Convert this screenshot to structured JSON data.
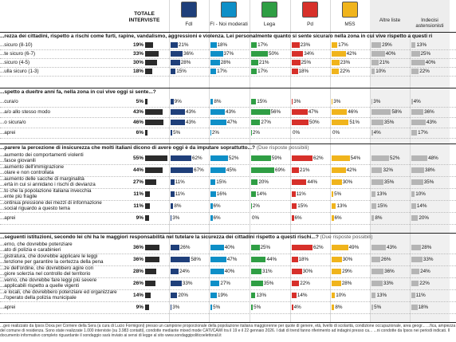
{
  "header": {
    "total_label": "TOTALE INTERVISTE",
    "columns": [
      {
        "key": "fdi",
        "label": "FdI",
        "color": "#1f3f7a"
      },
      {
        "key": "fi",
        "label": "FI - Noi moderati",
        "color": "#0e8fc7"
      },
      {
        "key": "lega",
        "label": "Lega",
        "color": "#2f9e44"
      },
      {
        "key": "pd",
        "label": "Pd",
        "color": "#d7302a"
      },
      {
        "key": "m5s",
        "label": "M5S",
        "color": "#f0b41c"
      },
      {
        "key": "altre",
        "label": "Altre liste",
        "color": "#b5b5b5"
      },
      {
        "key": "indecisi",
        "label": "Indecisi astensionisti",
        "color": "#b5b5b5"
      }
    ]
  },
  "chart_data": {
    "type": "bar",
    "columns": [
      "FdI",
      "FI - Noi moderati",
      "Lega",
      "Pd",
      "M5S",
      "Altre liste",
      "Indecisi astensionisti"
    ],
    "questions": [
      {
        "title": "...rezza dei cittadini, rispetto a rischi come furti, rapine, vandalismo, aggressioni e violenza. Lei personalmente quanto si sente sicura/o nella zona in cui vive rispetto a questi ri",
        "note": "",
        "rows": [
          {
            "label": "...sicuro (8-10)",
            "total": 19,
            "values": [
              21,
              18,
              17,
              23,
              17,
              29,
              13
            ]
          },
          {
            "label": "...te sicuro (6-7)",
            "total": 33,
            "values": [
              36,
              37,
              50,
              34,
              42,
              40,
              25
            ]
          },
          {
            "label": "...sicuro (4-5)",
            "total": 30,
            "values": [
              28,
              28,
              21,
              25,
              23,
              21,
              40
            ]
          },
          {
            "label": "...ulla sicuro (1-3)",
            "total": 18,
            "values": [
              15,
              17,
              17,
              18,
              22,
              10,
              22
            ]
          }
        ]
      },
      {
        "title": "...spetto a due/tre anni fa, nella zona in cui vive oggi si sente...?",
        "note": "",
        "rows": [
          {
            "label": "...cura/o",
            "total": 5,
            "values": [
              9,
              8,
              15,
              3,
              3,
              3,
              4
            ]
          },
          {
            "label": "...a/o allo stesso modo",
            "total": 43,
            "values": [
              43,
              43,
              56,
              47,
              46,
              58,
              36
            ]
          },
          {
            "label": "...o sicura/o",
            "total": 46,
            "values": [
              43,
              47,
              27,
              50,
              51,
              35,
              43
            ]
          },
          {
            "label": "...aprei",
            "total": 6,
            "values": [
              5,
              2,
              2,
              0,
              0,
              4,
              17
            ]
          }
        ]
      },
      {
        "title": "...parere la percezione di insicurezza che molti italiani dicono di avere oggi è da imputare soprattutto...?",
        "note": "(Due risposte possibili)",
        "rows": [
          {
            "label": "...aumento dei comportamenti violenti\n...fasce giovanili",
            "total": 55,
            "values": [
              62,
              52,
              59,
              62,
              54,
              52,
              48
            ]
          },
          {
            "label": "...aumento dell'immigrazione\n...olare e non controllata",
            "total": 44,
            "values": [
              67,
              45,
              69,
              21,
              42,
              32,
              38
            ]
          },
          {
            "label": "...aumento delle sacche di marginalità\n...ertà in cui si annidano i rischi di devianza",
            "total": 27,
            "values": [
              11,
              15,
              20,
              44,
              30,
              35,
              35
            ]
          },
          {
            "label": "...to che la popolazione italiana invecchia\n...ente più fragile",
            "total": 11,
            "values": [
              11,
              16,
              14,
              11,
              5,
              13,
              10
            ]
          },
          {
            "label": "...ontinua pressione dei mezzi di informazione\n...social riguardo a questo tema",
            "total": 11,
            "values": [
              8,
              6,
              2,
              15,
              13,
              15,
              14
            ]
          },
          {
            "label": "...aprei",
            "total": 9,
            "values": [
              3,
              6,
              0,
              6,
              6,
              8,
              20
            ]
          }
        ]
      },
      {
        "title": "...seguenti istituzioni, secondo lei chi ha le maggiori responsabilità nel tutelare la sicurezza dei cittadini rispetto a questi rischi...?",
        "note": "(Due risposte possibili)",
        "rows": [
          {
            "label": "...erno, che dovrebbe potenziare\n...ato di polizia e carabinieri",
            "total": 36,
            "values": [
              26,
              40,
              25,
              62,
              49,
              43,
              28
            ]
          },
          {
            "label": "...gistratura, che dovrebbe applicare le leggi\n...tenzione per garantire la certezza della pena",
            "total": 36,
            "values": [
              58,
              47,
              44,
              18,
              30,
              26,
              33
            ]
          },
          {
            "label": "...ze dell'ordine, che dovrebbero agire con\n...giore solerzia nel controllo del territorio",
            "total": 28,
            "values": [
              24,
              40,
              31,
              30,
              29,
              36,
              24
            ]
          },
          {
            "label": "...verno, che dovrebbe fare leggi più severe\n...applicabili rispetto a quelle vigenti",
            "total": 26,
            "values": [
              33,
              27,
              35,
              22,
              28,
              33,
              22
            ]
          },
          {
            "label": "...e locali, che dovrebbero potenziare ed organizzare\n...l'operato della polizia municipale",
            "total": 14,
            "values": [
              20,
              19,
              13,
              14,
              10,
              13,
              11
            ]
          },
          {
            "label": "...aprei",
            "total": 9,
            "values": [
              3,
              5,
              5,
              4,
              8,
              5,
              18
            ]
          }
        ]
      }
    ]
  },
  "footer": {
    "text": "...geo realizzato da Ipsos Doxa per Corriere della Sera (a cura di Lucio Formigoni) presso un campione proporzionale della popolazione italiana maggiorenne per quote di genere, età, livello di scolarità, condizione occupazionale, area geogr... ...fica, ampiezza del comune di residenza. Sono state realizzate 1.000 interviste (su 3.983 contatti), condotte mediante mixed mode CATI/CAWI tra il 19 e il 22 gennaio 2026. I dati di trend fanno riferimento ad indagini presso ca... ...ni condotte da Ipsos nei periodi indicati. Il documento informativo completo riguardante il sondaggio sarà inviato ai sensi di legge al sito www.sondaggipoliticoelettorali.it"
  }
}
